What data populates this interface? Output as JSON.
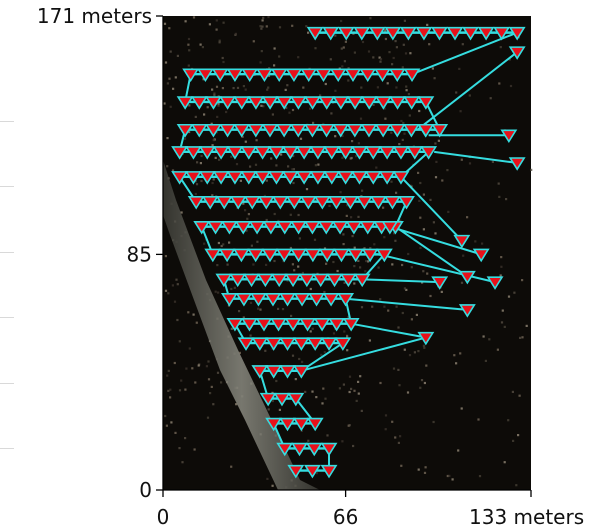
{
  "chart_data": {
    "type": "scatter",
    "title": "",
    "xlabel": "",
    "ylabel": "",
    "xlim": [
      0,
      133
    ],
    "ylim": [
      0,
      171
    ],
    "x_ticks": [
      {
        "value": 0,
        "label": "0"
      },
      {
        "value": 66,
        "label": "66"
      },
      {
        "value": 133,
        "label": "133 meters"
      }
    ],
    "y_ticks": [
      {
        "value": 0,
        "label": "0"
      },
      {
        "value": 85,
        "label": "85"
      },
      {
        "value": 171,
        "label": "171 meters"
      }
    ],
    "background": "aerial point-cloud orthophoto",
    "marker": {
      "shape": "downward-triangle",
      "color": "#e8101a",
      "edge_color": "#35dde0"
    },
    "path_color": "#35dde0",
    "grid": false,
    "camera_rows": [
      {
        "y": 165,
        "x_start": 55,
        "x_end": 128,
        "count": 14
      },
      {
        "y": 150,
        "x_start": 10,
        "x_end": 90,
        "count": 16
      },
      {
        "y": 140,
        "x_start": 8,
        "x_end": 95,
        "count": 18
      },
      {
        "y": 130,
        "x_start": 8,
        "x_end": 100,
        "count": 19
      },
      {
        "y": 122,
        "x_start": 6,
        "x_end": 96,
        "count": 19
      },
      {
        "y": 113,
        "x_start": 6,
        "x_end": 86,
        "count": 17
      },
      {
        "y": 104,
        "x_start": 12,
        "x_end": 88,
        "count": 16
      },
      {
        "y": 95,
        "x_start": 14,
        "x_end": 84,
        "count": 15
      },
      {
        "y": 85,
        "x_start": 18,
        "x_end": 80,
        "count": 13
      },
      {
        "y": 76,
        "x_start": 22,
        "x_end": 72,
        "count": 11
      },
      {
        "y": 69,
        "x_start": 24,
        "x_end": 66,
        "count": 9
      },
      {
        "y": 60,
        "x_start": 26,
        "x_end": 68,
        "count": 9
      },
      {
        "y": 53,
        "x_start": 30,
        "x_end": 65,
        "count": 8
      },
      {
        "y": 43,
        "x_start": 35,
        "x_end": 50,
        "count": 4
      },
      {
        "y": 33,
        "x_start": 38,
        "x_end": 48,
        "count": 3
      },
      {
        "y": 24,
        "x_start": 40,
        "x_end": 55,
        "count": 4
      },
      {
        "y": 15,
        "x_start": 44,
        "x_end": 60,
        "count": 4
      },
      {
        "y": 7,
        "x_start": 48,
        "x_end": 60,
        "count": 3
      }
    ],
    "outlier_points": [
      {
        "x": 128,
        "y": 158
      },
      {
        "x": 125,
        "y": 128
      },
      {
        "x": 128,
        "y": 118
      },
      {
        "x": 108,
        "y": 90
      },
      {
        "x": 115,
        "y": 85
      },
      {
        "x": 110,
        "y": 77
      },
      {
        "x": 120,
        "y": 75
      },
      {
        "x": 100,
        "y": 75
      },
      {
        "x": 110,
        "y": 65
      },
      {
        "x": 95,
        "y": 55
      },
      {
        "x": 82,
        "y": 95
      },
      {
        "x": 95,
        "y": 130
      }
    ],
    "links": [
      {
        "from": [
          92,
          130
        ],
        "to": [
          128,
          158
        ]
      },
      {
        "from": [
          96,
          128
        ],
        "to": [
          125,
          128
        ]
      },
      {
        "from": [
          98,
          122
        ],
        "to": [
          128,
          118
        ]
      },
      {
        "from": [
          86,
          113
        ],
        "to": [
          108,
          90
        ]
      },
      {
        "from": [
          82,
          95
        ],
        "to": [
          115,
          85
        ]
      },
      {
        "from": [
          84,
          95
        ],
        "to": [
          110,
          77
        ]
      },
      {
        "from": [
          78,
          85
        ],
        "to": [
          120,
          75
        ]
      },
      {
        "from": [
          72,
          76
        ],
        "to": [
          100,
          75
        ]
      },
      {
        "from": [
          66,
          69
        ],
        "to": [
          110,
          65
        ]
      },
      {
        "from": [
          68,
          60
        ],
        "to": [
          95,
          55
        ]
      },
      {
        "from": [
          50,
          43
        ],
        "to": [
          95,
          55
        ]
      }
    ]
  }
}
